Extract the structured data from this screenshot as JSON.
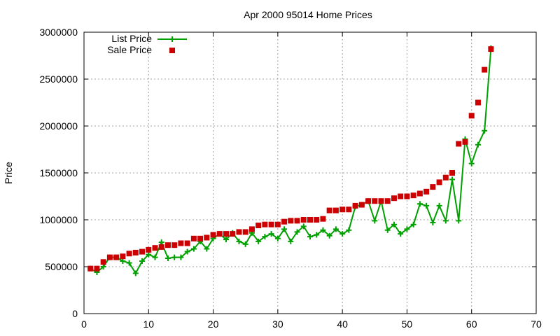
{
  "chart_data": {
    "type": "line",
    "title": "Apr 2000 95014 Home Prices",
    "xlabel": "",
    "ylabel": "Price",
    "xlim": [
      0,
      70
    ],
    "ylim": [
      0,
      3000000
    ],
    "x_ticks": [
      0,
      10,
      20,
      30,
      40,
      50,
      60,
      70
    ],
    "y_ticks": [
      0,
      500000,
      1000000,
      1500000,
      2000000,
      2500000,
      3000000
    ],
    "grid": true,
    "legend_position": "top-left",
    "series": [
      {
        "name": "List Price",
        "style": "line+plus",
        "color": "#00a000",
        "x": [
          1,
          2,
          3,
          4,
          5,
          6,
          7,
          8,
          9,
          10,
          11,
          12,
          13,
          14,
          15,
          16,
          17,
          18,
          19,
          20,
          21,
          22,
          23,
          24,
          25,
          26,
          27,
          28,
          29,
          30,
          31,
          32,
          33,
          34,
          35,
          36,
          37,
          38,
          39,
          40,
          41,
          42,
          43,
          44,
          45,
          46,
          47,
          48,
          49,
          50,
          51,
          52,
          53,
          54,
          55,
          56,
          57,
          58,
          59,
          60,
          61,
          62,
          63
        ],
        "values": [
          480000,
          440000,
          500000,
          600000,
          600000,
          560000,
          540000,
          430000,
          560000,
          630000,
          600000,
          760000,
          590000,
          600000,
          600000,
          660000,
          690000,
          770000,
          690000,
          800000,
          850000,
          790000,
          860000,
          770000,
          740000,
          860000,
          770000,
          820000,
          850000,
          800000,
          900000,
          770000,
          870000,
          930000,
          820000,
          840000,
          890000,
          830000,
          900000,
          850000,
          890000,
          1140000,
          1160000,
          1200000,
          990000,
          1200000,
          890000,
          950000,
          850000,
          900000,
          950000,
          1170000,
          1150000,
          970000,
          1150000,
          990000,
          1430000,
          990000,
          1860000,
          1600000,
          1800000,
          1950000,
          2830000
        ]
      },
      {
        "name": "Sale Price",
        "style": "square-points",
        "color": "#cc0000",
        "x": [
          1,
          2,
          3,
          4,
          5,
          6,
          7,
          8,
          9,
          10,
          11,
          12,
          13,
          14,
          15,
          16,
          17,
          18,
          19,
          20,
          21,
          22,
          23,
          24,
          25,
          26,
          27,
          28,
          29,
          30,
          31,
          32,
          33,
          34,
          35,
          36,
          37,
          38,
          39,
          40,
          41,
          42,
          43,
          44,
          45,
          46,
          47,
          48,
          49,
          50,
          51,
          52,
          53,
          54,
          55,
          56,
          57,
          58,
          59,
          60,
          61,
          62,
          63
        ],
        "values": [
          480000,
          480000,
          550000,
          600000,
          600000,
          610000,
          640000,
          650000,
          660000,
          680000,
          700000,
          710000,
          730000,
          730000,
          750000,
          750000,
          800000,
          800000,
          810000,
          840000,
          850000,
          850000,
          850000,
          870000,
          870000,
          900000,
          940000,
          950000,
          950000,
          950000,
          980000,
          990000,
          990000,
          1000000,
          1000000,
          1000000,
          1010000,
          1100000,
          1100000,
          1110000,
          1110000,
          1150000,
          1160000,
          1200000,
          1200000,
          1200000,
          1200000,
          1230000,
          1250000,
          1250000,
          1260000,
          1280000,
          1300000,
          1350000,
          1400000,
          1450000,
          1500000,
          1810000,
          1830000,
          2110000,
          2250000,
          2600000,
          2820000
        ]
      }
    ]
  }
}
